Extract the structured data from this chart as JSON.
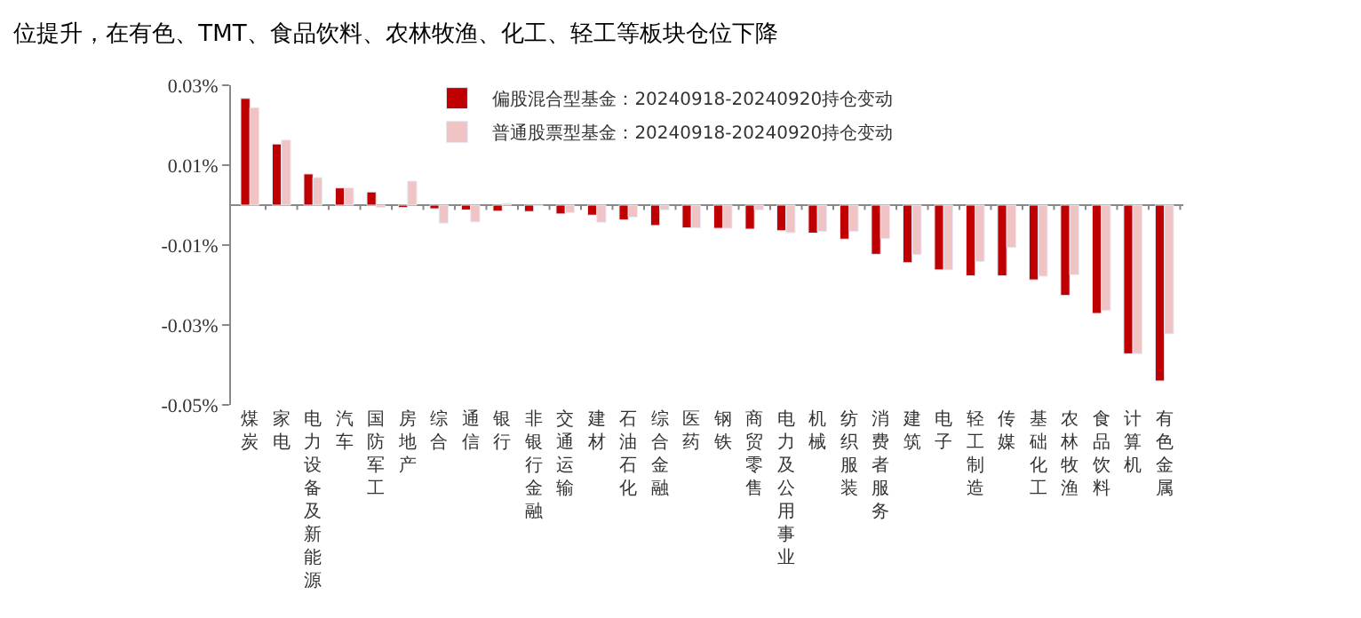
{
  "chart_data": {
    "type": "bar",
    "title": "位提升，在有色、TMT、食品饮料、农林牧渔、化工、轻工等板块仓位下降",
    "categories": [
      "煤炭",
      "家电",
      "电力设备及新能源",
      "汽车",
      "国防军工",
      "房地产",
      "综合",
      "通信",
      "银行",
      "非银行金融",
      "交通运输",
      "建材",
      "石油石化",
      "综合金融",
      "医药",
      "钢铁",
      "商贸零售",
      "电力及公用事业",
      "机械",
      "纺织服装",
      "消费者服务",
      "建筑",
      "电子",
      "轻工制造",
      "传媒",
      "基础化工",
      "农林牧渔",
      "食品饮料",
      "计算机",
      "有色金属"
    ],
    "series": [
      {
        "name": "偏股混合型基金：20240918-20240920持仓变动",
        "color": "#c00000",
        "values": [
          0.0267,
          0.0153,
          0.0078,
          0.0043,
          0.0033,
          -0.0006,
          -0.0009,
          -0.0012,
          -0.0015,
          -0.0016,
          -0.0022,
          -0.0025,
          -0.0037,
          -0.0051,
          -0.0057,
          -0.0058,
          -0.006,
          -0.0064,
          -0.007,
          -0.0085,
          -0.0123,
          -0.0144,
          -0.0162,
          -0.0177,
          -0.0177,
          -0.0187,
          -0.0226,
          -0.0271,
          -0.0372,
          -0.044
        ]
      },
      {
        "name": "普通股票型基金：20240918-20240920持仓变动",
        "color": "#f0c4c4",
        "values": [
          0.0244,
          0.0163,
          0.0069,
          0.0043,
          -0.0006,
          0.006,
          -0.0045,
          -0.0042,
          0.0004,
          -0.0002,
          -0.0019,
          -0.0043,
          -0.003,
          -0.0012,
          -0.0057,
          -0.0058,
          -0.0012,
          -0.0069,
          -0.0066,
          -0.0066,
          -0.0084,
          -0.0124,
          -0.0162,
          -0.0141,
          -0.0106,
          -0.0178,
          -0.0174,
          -0.0264,
          -0.0372,
          -0.0322
        ]
      }
    ],
    "ylim": [
      -0.05,
      0.03
    ],
    "yticks": [
      {
        "value": 0.03,
        "label": "0.03%"
      },
      {
        "value": 0.01,
        "label": "0.01%"
      },
      {
        "value": -0.01,
        "label": "-0.01%"
      },
      {
        "value": -0.03,
        "label": "-0.03%"
      },
      {
        "value": -0.05,
        "label": "-0.05%"
      }
    ],
    "legend": "top"
  }
}
